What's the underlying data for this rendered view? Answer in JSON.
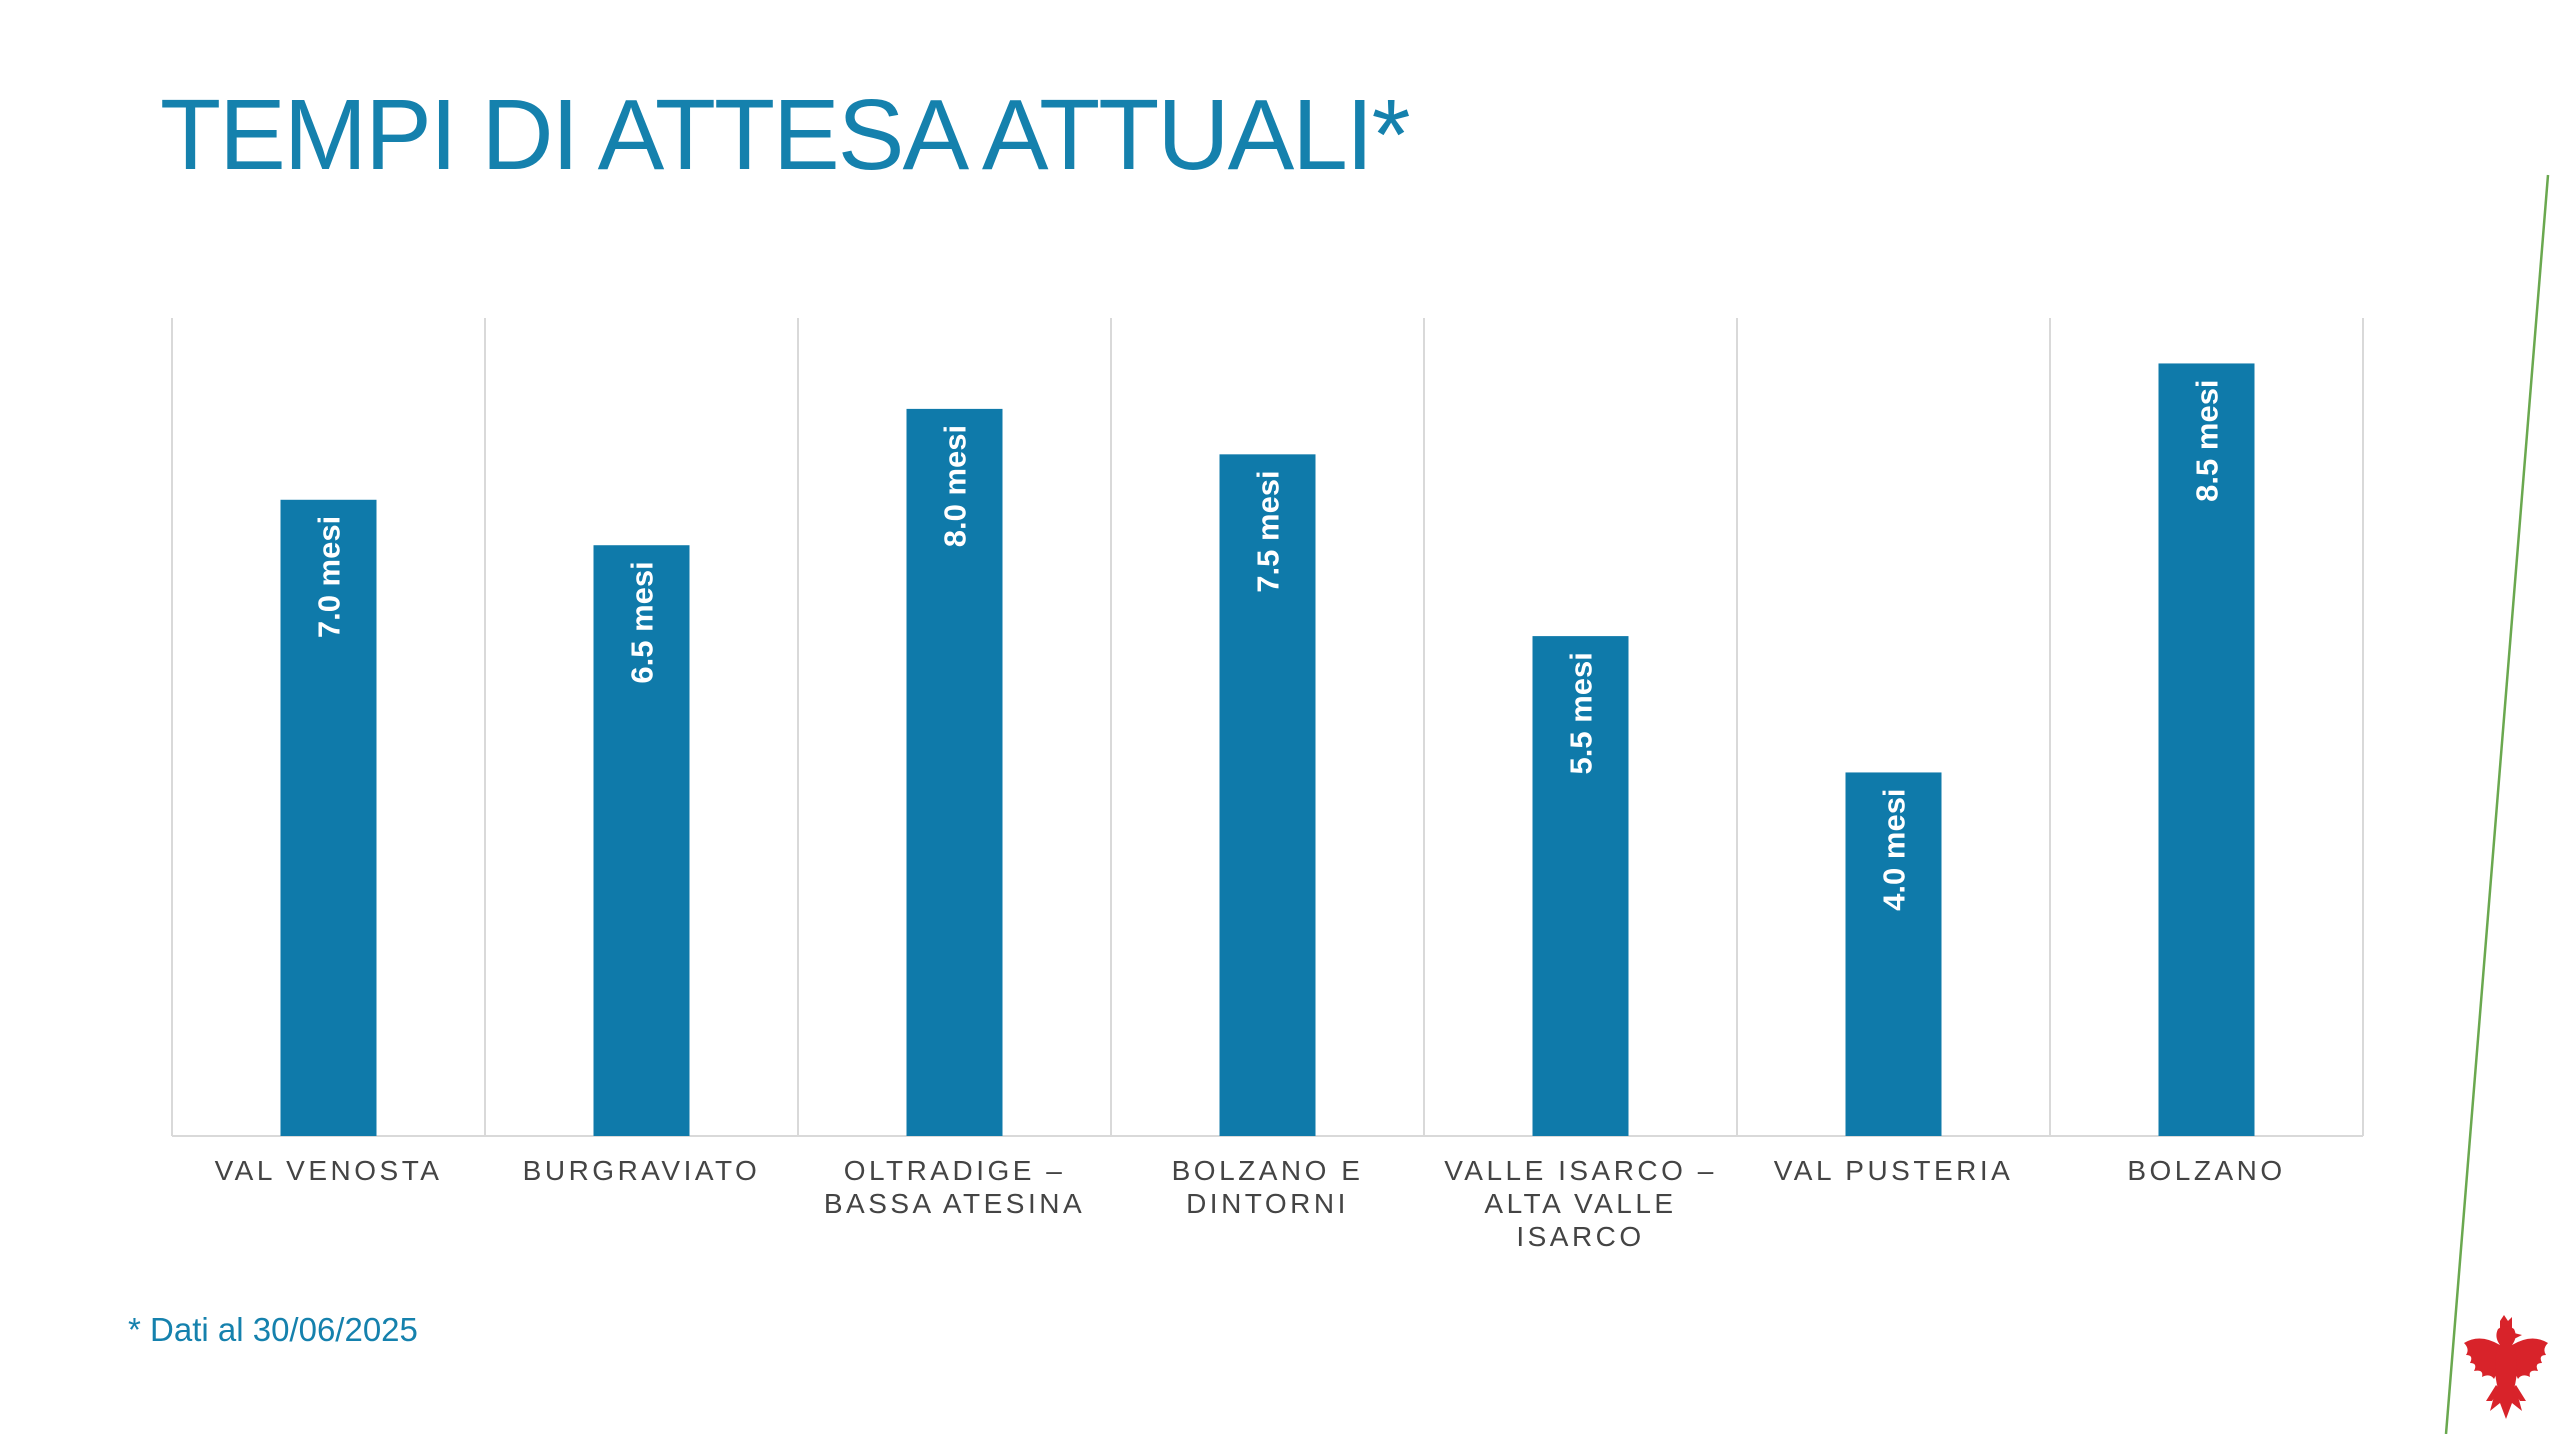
{
  "page": {
    "title": "TEMPI DI ATTESA ATTUALI*",
    "footnote": "* Dati al 30/06/2025"
  },
  "colors": {
    "bar": "#0f7aaa",
    "title": "#1581ad",
    "label_text": "#444444",
    "grid": "#d9d9d9",
    "accent_line": "#6aa84f",
    "logo": "#d8232a"
  },
  "icons": {
    "logo": "eagle-coat-of-arms-icon"
  },
  "chart_data": {
    "type": "bar",
    "categories": [
      [
        "VAL VENOSTA"
      ],
      [
        "BURGRAVIATO"
      ],
      [
        "OLTRADIGE –",
        "BASSA ATESINA"
      ],
      [
        "BOLZANO E",
        "DINTORNI"
      ],
      [
        "VALLE ISARCO –",
        "ALTA VALLE",
        "ISARCO"
      ],
      [
        "VAL PUSTERIA"
      ],
      [
        "BOLZANO"
      ]
    ],
    "values": [
      7.0,
      6.5,
      8.0,
      7.5,
      5.5,
      4.0,
      8.5
    ],
    "data_labels": [
      "7.0 mesi",
      "6.5 mesi",
      "8.0 mesi",
      "7.5 mesi",
      "5.5 mesi",
      "4.0 mesi",
      "8.5 mesi"
    ],
    "unit": "mesi",
    "ylim": [
      0,
      9
    ],
    "grid": "vertical category separators",
    "legend": "none",
    "xlabel": "",
    "ylabel": ""
  }
}
